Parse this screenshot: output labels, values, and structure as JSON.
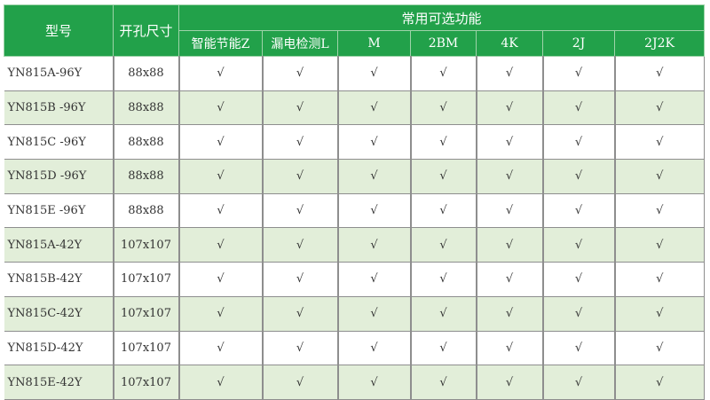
{
  "header": {
    "model": "型号",
    "cutout": "开孔尺寸",
    "features_group": "常用可选功能",
    "features": [
      "智能节能Z",
      "漏电检测L",
      "M",
      "2BM",
      "4K",
      "2J",
      "2J2K"
    ]
  },
  "check_mark": "√",
  "colors": {
    "header_bg": "#22a14a",
    "alt_row_bg": "#e2eed9"
  },
  "rows": [
    {
      "model": "YN815A-96Y",
      "cutout": "88x88"
    },
    {
      "model": "YN815B -96Y",
      "cutout": "88x88"
    },
    {
      "model": "YN815C -96Y",
      "cutout": "88x88"
    },
    {
      "model": "YN815D -96Y",
      "cutout": "88x88"
    },
    {
      "model": "YN815E -96Y",
      "cutout": "88x88"
    },
    {
      "model": "YN815A-42Y",
      "cutout": "107x107"
    },
    {
      "model": "YN815B-42Y",
      "cutout": "107x107"
    },
    {
      "model": "YN815C-42Y",
      "cutout": "107x107"
    },
    {
      "model": "YN815D-42Y",
      "cutout": "107x107"
    },
    {
      "model": "YN815E-42Y",
      "cutout": "107x107"
    }
  ]
}
